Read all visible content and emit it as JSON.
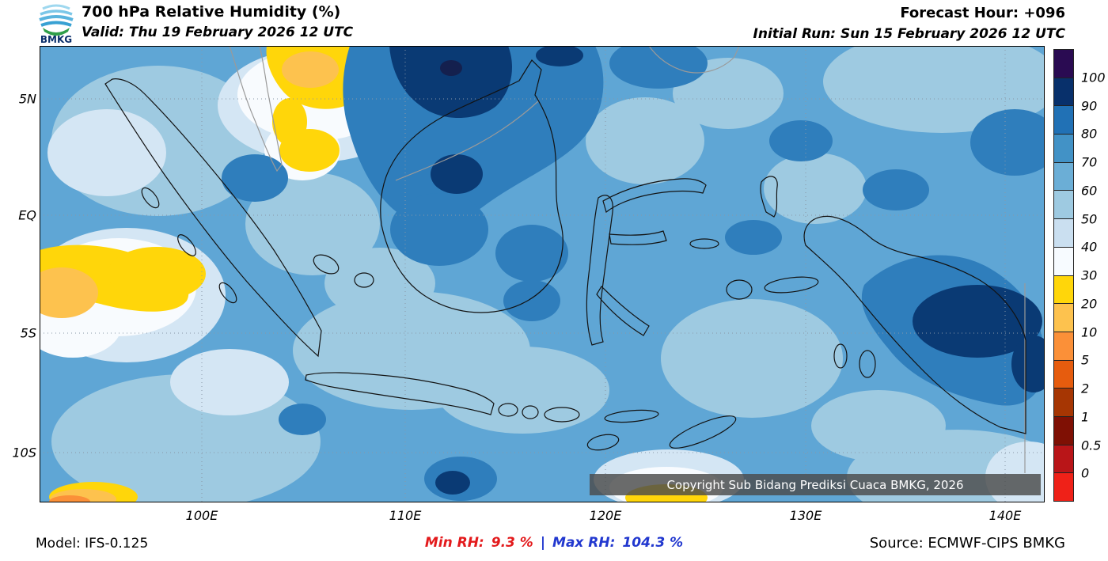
{
  "header": {
    "logo_text": "BMKG",
    "title": "700 hPa Relative Humidity (%)",
    "valid": "Valid: Thu 19 February 2026 12 UTC",
    "forecast_hour": "Forecast Hour: +096",
    "initial_run": "Initial Run: Sun 15 February 2026 12 UTC"
  },
  "map": {
    "x_ticks": [
      "100E",
      "110E",
      "120E",
      "130E",
      "140E"
    ],
    "y_ticks": [
      "5N",
      "EQ",
      "5S",
      "10S"
    ],
    "copyright": "Copyright Sub Bidang Prediksi Cuaca BMKG, 2026"
  },
  "colorbar": {
    "labels": [
      "100",
      "90",
      "80",
      "70",
      "60",
      "50",
      "40",
      "30",
      "20",
      "10",
      "5",
      "2",
      "1",
      "0.5",
      "0"
    ],
    "segments": [
      "#2a0b52",
      "#08306b",
      "#2171b5",
      "#4292c6",
      "#6baed6",
      "#9ecae1",
      "#cadff0",
      "#f7fbff",
      "#ffd60a",
      "#fdc24e",
      "#fb9038",
      "#e65c0e",
      "#a63603",
      "#7f1004",
      "#b91518",
      "#ef2118"
    ]
  },
  "footer": {
    "model": "Model: IFS-0.125",
    "min_label": "Min RH:",
    "min_value": "9.3 %",
    "separator": "|",
    "max_label": "Max RH:",
    "max_value": "104.3 %",
    "source": "Source: ECMWF-CIPS BMKG"
  },
  "chart_data": {
    "type": "heatmap",
    "title": "700 hPa Relative Humidity (%)",
    "units": "%",
    "x_ticks": [
      "100E",
      "110E",
      "120E",
      "130E",
      "140E"
    ],
    "y_ticks": [
      "5N",
      "EQ",
      "5S",
      "10S"
    ],
    "scale_levels": [
      0,
      0.5,
      1,
      2,
      5,
      10,
      20,
      30,
      40,
      50,
      60,
      70,
      80,
      90,
      100
    ],
    "min_rh": 9.3,
    "max_rh": 104.3,
    "legend_position": "right",
    "grid": "dotted"
  }
}
